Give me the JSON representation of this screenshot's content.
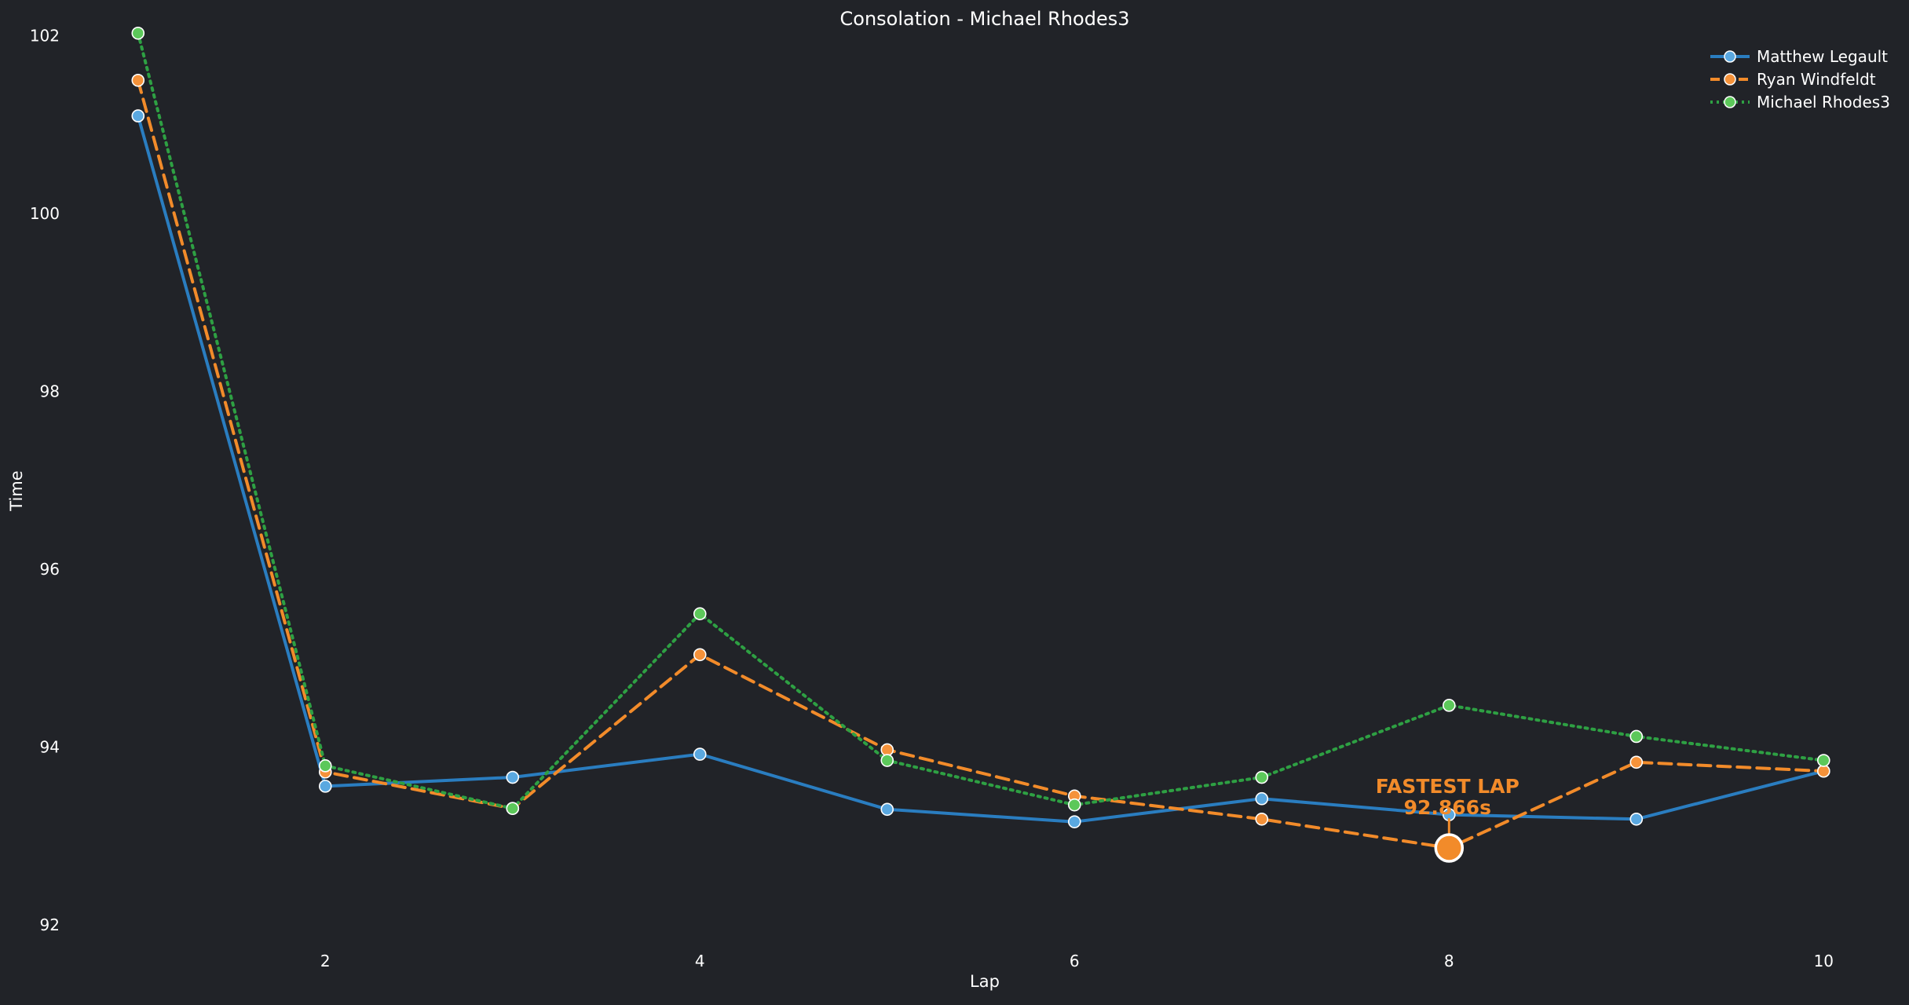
{
  "chart_data": {
    "type": "line",
    "title": "Consolation - Michael Rhodes3",
    "xlabel": "Lap",
    "ylabel": "Time",
    "xlim": [
      0.85,
      10.2
    ],
    "ylim": [
      91.85,
      102.05
    ],
    "xticks": [
      2,
      4,
      6,
      8,
      10
    ],
    "yticks": [
      92,
      94,
      96,
      98,
      100,
      102
    ],
    "grid": false,
    "legend_position": "top-right",
    "x": [
      1,
      2,
      3,
      4,
      5,
      6,
      7,
      8,
      9,
      10
    ],
    "series": [
      {
        "name": "Matthew Legault",
        "color": "#2a7dc0",
        "marker_color": "#5aa8e0",
        "style": "solid",
        "values": [
          101.1,
          93.56,
          93.66,
          93.92,
          93.3,
          93.16,
          93.42,
          93.24,
          93.19,
          93.73
        ]
      },
      {
        "name": "Ryan Windfeldt",
        "color": "#f28b2a",
        "marker_color": "#f5923a",
        "style": "dashed",
        "values": [
          101.5,
          93.72,
          93.31,
          95.04,
          93.97,
          93.45,
          93.19,
          92.866,
          93.83,
          93.73
        ]
      },
      {
        "name": "Michael Rhodes3",
        "color": "#2ea043",
        "marker_color": "#5cc85a",
        "style": "dotted",
        "values": [
          102.03,
          93.79,
          93.31,
          95.5,
          93.85,
          93.35,
          93.66,
          94.47,
          94.12,
          93.85
        ]
      }
    ],
    "annotation": {
      "label": "FASTEST LAP",
      "value_text": "92.866s",
      "x": 8,
      "y": 92.866,
      "series": "Ryan Windfeldt"
    }
  }
}
